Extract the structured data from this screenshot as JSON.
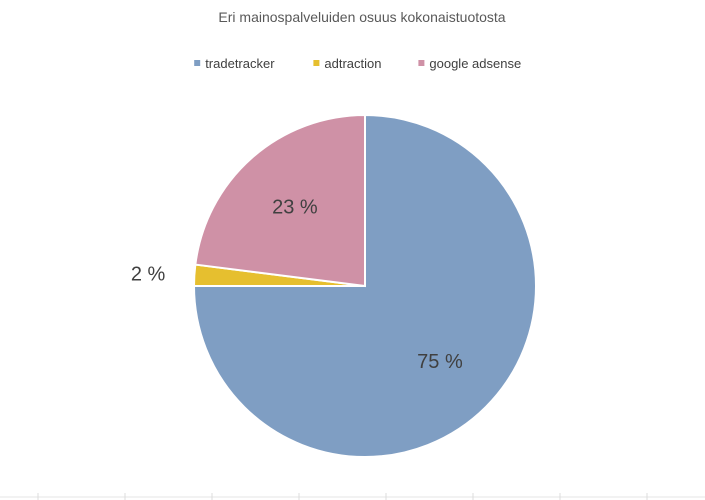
{
  "chart_data": {
    "type": "pie",
    "title": "Eri mainospalveluiden osuus kokonaistuotosta",
    "legend_position": "top",
    "start_angle_deg": 0,
    "direction": "clockwise",
    "slices": [
      {
        "name": "tradetracker",
        "value": 75,
        "label": "75 %",
        "color": "#7f9ec3"
      },
      {
        "name": "adtraction",
        "value": 2,
        "label": "2 %",
        "color": "#e6bf2f"
      },
      {
        "name": "google adsense",
        "value": 23,
        "label": "23 %",
        "color": "#cf91a6"
      }
    ]
  }
}
